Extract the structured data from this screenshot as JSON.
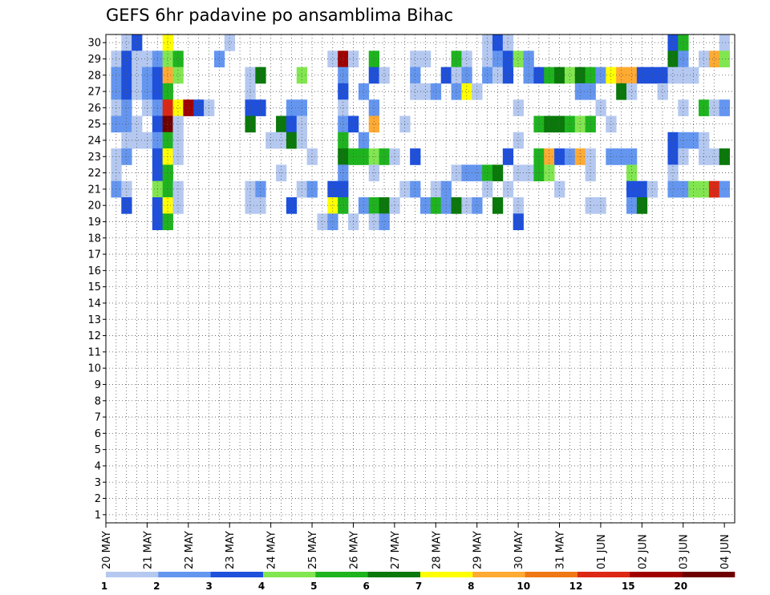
{
  "chart_data": {
    "type": "heatmap",
    "title": "GEFS 6hr padavine po ansamblima Bihac",
    "xlabel": "",
    "ylabel": "",
    "x_tick_labels": [
      "20 MAY",
      "21 MAY",
      "22 MAY",
      "23 MAY",
      "24 MAY",
      "25 MAY",
      "26 MAY",
      "27 MAY",
      "28 MAY",
      "29 MAY",
      "30 MAY",
      "31 MAY",
      "01 JUN",
      "02 JUN",
      "03 JUN",
      "04 JUN"
    ],
    "y_tick_labels": [
      "1",
      "2",
      "3",
      "4",
      "5",
      "6",
      "7",
      "8",
      "9",
      "10",
      "11",
      "12",
      "13",
      "14",
      "15",
      "16",
      "17",
      "18",
      "19",
      "20",
      "21",
      "22",
      "23",
      "24",
      "25",
      "26",
      "27",
      "28",
      "29",
      "30"
    ],
    "ylim": [
      1,
      30
    ],
    "time_steps": 61,
    "time_step_hours": 6,
    "start_date": "20 MAY",
    "grid": "dotted",
    "colorbar": {
      "labels": [
        "1",
        "2",
        "3",
        "4",
        "5",
        "6",
        "7",
        "8",
        "10",
        "12",
        "15",
        "20"
      ],
      "colors": [
        "#b4c8f0",
        "#6496f0",
        "#1e50dc",
        "#82e650",
        "#1eb41e",
        "#0a780a",
        "#ffff00",
        "#ffaa32",
        "#f07814",
        "#dc2814",
        "#a00000",
        "#6e0000"
      ]
    },
    "cells": [
      [
        30,
        2,
        0
      ],
      [
        30,
        3,
        2
      ],
      [
        30,
        6,
        6
      ],
      [
        30,
        12,
        0
      ],
      [
        30,
        37,
        0
      ],
      [
        30,
        38,
        2
      ],
      [
        30,
        39,
        0
      ],
      [
        30,
        55,
        2
      ],
      [
        30,
        56,
        4
      ],
      [
        30,
        60,
        0
      ],
      [
        29,
        1,
        0
      ],
      [
        29,
        2,
        2
      ],
      [
        29,
        3,
        0
      ],
      [
        29,
        4,
        0
      ],
      [
        29,
        5,
        1
      ],
      [
        29,
        6,
        3
      ],
      [
        29,
        7,
        4
      ],
      [
        29,
        11,
        1
      ],
      [
        29,
        22,
        0
      ],
      [
        29,
        23,
        10
      ],
      [
        29,
        24,
        0
      ],
      [
        29,
        26,
        4
      ],
      [
        29,
        30,
        0
      ],
      [
        29,
        31,
        0
      ],
      [
        29,
        34,
        4
      ],
      [
        29,
        35,
        0
      ],
      [
        29,
        37,
        0
      ],
      [
        29,
        38,
        1
      ],
      [
        29,
        39,
        2
      ],
      [
        29,
        40,
        3
      ],
      [
        29,
        41,
        1
      ],
      [
        29,
        55,
        5
      ],
      [
        29,
        56,
        1
      ],
      [
        29,
        58,
        0
      ],
      [
        29,
        59,
        7
      ],
      [
        29,
        60,
        3
      ],
      [
        28,
        1,
        1
      ],
      [
        28,
        2,
        2
      ],
      [
        28,
        3,
        0
      ],
      [
        28,
        4,
        1
      ],
      [
        28,
        5,
        2
      ],
      [
        28,
        6,
        7
      ],
      [
        28,
        7,
        3
      ],
      [
        28,
        14,
        0
      ],
      [
        28,
        15,
        5
      ],
      [
        28,
        19,
        3
      ],
      [
        28,
        23,
        1
      ],
      [
        28,
        26,
        2
      ],
      [
        28,
        27,
        0
      ],
      [
        28,
        30,
        1
      ],
      [
        28,
        33,
        2
      ],
      [
        28,
        34,
        0
      ],
      [
        28,
        35,
        1
      ],
      [
        28,
        37,
        1
      ],
      [
        28,
        38,
        0
      ],
      [
        28,
        39,
        2
      ],
      [
        28,
        41,
        1
      ],
      [
        28,
        42,
        2
      ],
      [
        28,
        43,
        4
      ],
      [
        28,
        44,
        5
      ],
      [
        28,
        45,
        3
      ],
      [
        28,
        46,
        5
      ],
      [
        28,
        47,
        4
      ],
      [
        28,
        48,
        1
      ],
      [
        28,
        49,
        6
      ],
      [
        28,
        50,
        7
      ],
      [
        28,
        51,
        7
      ],
      [
        28,
        52,
        2
      ],
      [
        28,
        53,
        2
      ],
      [
        28,
        54,
        2
      ],
      [
        28,
        55,
        0
      ],
      [
        28,
        56,
        0
      ],
      [
        28,
        57,
        0
      ],
      [
        27,
        1,
        1
      ],
      [
        27,
        2,
        2
      ],
      [
        27,
        3,
        0
      ],
      [
        27,
        4,
        1
      ],
      [
        27,
        5,
        2
      ],
      [
        27,
        6,
        4
      ],
      [
        27,
        14,
        0
      ],
      [
        27,
        23,
        2
      ],
      [
        27,
        25,
        1
      ],
      [
        27,
        30,
        0
      ],
      [
        27,
        31,
        0
      ],
      [
        27,
        32,
        1
      ],
      [
        27,
        34,
        1
      ],
      [
        27,
        35,
        6
      ],
      [
        27,
        36,
        0
      ],
      [
        27,
        46,
        1
      ],
      [
        27,
        47,
        1
      ],
      [
        27,
        50,
        5
      ],
      [
        27,
        51,
        0
      ],
      [
        27,
        54,
        0
      ],
      [
        26,
        1,
        0
      ],
      [
        26,
        2,
        1
      ],
      [
        26,
        4,
        0
      ],
      [
        26,
        5,
        1
      ],
      [
        26,
        6,
        9
      ],
      [
        26,
        7,
        6
      ],
      [
        26,
        8,
        10
      ],
      [
        26,
        9,
        2
      ],
      [
        26,
        10,
        0
      ],
      [
        26,
        14,
        2
      ],
      [
        26,
        15,
        2
      ],
      [
        26,
        18,
        1
      ],
      [
        26,
        19,
        1
      ],
      [
        26,
        23,
        0
      ],
      [
        26,
        26,
        1
      ],
      [
        26,
        40,
        0
      ],
      [
        26,
        48,
        0
      ],
      [
        26,
        56,
        0
      ],
      [
        26,
        58,
        4
      ],
      [
        26,
        59,
        0
      ],
      [
        26,
        60,
        1
      ],
      [
        25,
        1,
        1
      ],
      [
        25,
        2,
        1
      ],
      [
        25,
        3,
        0
      ],
      [
        25,
        5,
        2
      ],
      [
        25,
        6,
        11
      ],
      [
        25,
        7,
        0
      ],
      [
        25,
        14,
        5
      ],
      [
        25,
        17,
        5
      ],
      [
        25,
        18,
        2
      ],
      [
        25,
        19,
        0
      ],
      [
        25,
        23,
        1
      ],
      [
        25,
        24,
        2
      ],
      [
        25,
        26,
        7
      ],
      [
        25,
        29,
        0
      ],
      [
        25,
        42,
        4
      ],
      [
        25,
        43,
        5
      ],
      [
        25,
        44,
        5
      ],
      [
        25,
        45,
        4
      ],
      [
        25,
        46,
        3
      ],
      [
        25,
        47,
        4
      ],
      [
        25,
        49,
        0
      ],
      [
        24,
        2,
        0
      ],
      [
        24,
        3,
        0
      ],
      [
        24,
        4,
        0
      ],
      [
        24,
        5,
        1
      ],
      [
        24,
        6,
        4
      ],
      [
        24,
        7,
        0
      ],
      [
        24,
        16,
        0
      ],
      [
        24,
        17,
        0
      ],
      [
        24,
        18,
        5
      ],
      [
        24,
        19,
        0
      ],
      [
        24,
        23,
        4
      ],
      [
        24,
        25,
        1
      ],
      [
        24,
        40,
        0
      ],
      [
        24,
        55,
        2
      ],
      [
        24,
        56,
        1
      ],
      [
        24,
        57,
        1
      ],
      [
        24,
        58,
        0
      ],
      [
        23,
        1,
        0
      ],
      [
        23,
        2,
        1
      ],
      [
        23,
        5,
        2
      ],
      [
        23,
        6,
        6
      ],
      [
        23,
        7,
        0
      ],
      [
        23,
        20,
        0
      ],
      [
        23,
        23,
        5
      ],
      [
        23,
        24,
        4
      ],
      [
        23,
        25,
        4
      ],
      [
        23,
        26,
        3
      ],
      [
        23,
        27,
        4
      ],
      [
        23,
        28,
        0
      ],
      [
        23,
        30,
        2
      ],
      [
        23,
        39,
        2
      ],
      [
        23,
        42,
        4
      ],
      [
        23,
        43,
        7
      ],
      [
        23,
        44,
        2
      ],
      [
        23,
        45,
        1
      ],
      [
        23,
        46,
        7
      ],
      [
        23,
        47,
        0
      ],
      [
        23,
        49,
        1
      ],
      [
        23,
        50,
        1
      ],
      [
        23,
        51,
        1
      ],
      [
        23,
        55,
        2
      ],
      [
        23,
        56,
        0
      ],
      [
        23,
        58,
        0
      ],
      [
        23,
        59,
        0
      ],
      [
        23,
        60,
        5
      ],
      [
        22,
        1,
        0
      ],
      [
        22,
        5,
        2
      ],
      [
        22,
        6,
        4
      ],
      [
        22,
        17,
        0
      ],
      [
        22,
        23,
        1
      ],
      [
        22,
        26,
        0
      ],
      [
        22,
        34,
        0
      ],
      [
        22,
        35,
        1
      ],
      [
        22,
        36,
        1
      ],
      [
        22,
        37,
        4
      ],
      [
        22,
        38,
        5
      ],
      [
        22,
        40,
        0
      ],
      [
        22,
        41,
        0
      ],
      [
        22,
        42,
        4
      ],
      [
        22,
        43,
        3
      ],
      [
        22,
        47,
        0
      ],
      [
        22,
        51,
        3
      ],
      [
        22,
        55,
        0
      ],
      [
        21,
        1,
        1
      ],
      [
        21,
        2,
        0
      ],
      [
        21,
        5,
        3
      ],
      [
        21,
        6,
        4
      ],
      [
        21,
        7,
        0
      ],
      [
        21,
        14,
        0
      ],
      [
        21,
        15,
        1
      ],
      [
        21,
        19,
        0
      ],
      [
        21,
        20,
        1
      ],
      [
        21,
        22,
        2
      ],
      [
        21,
        23,
        2
      ],
      [
        21,
        29,
        0
      ],
      [
        21,
        30,
        1
      ],
      [
        21,
        32,
        0
      ],
      [
        21,
        33,
        1
      ],
      [
        21,
        37,
        0
      ],
      [
        21,
        39,
        0
      ],
      [
        21,
        44,
        0
      ],
      [
        21,
        51,
        2
      ],
      [
        21,
        52,
        2
      ],
      [
        21,
        53,
        0
      ],
      [
        21,
        55,
        1
      ],
      [
        21,
        56,
        1
      ],
      [
        21,
        57,
        3
      ],
      [
        21,
        58,
        3
      ],
      [
        21,
        59,
        9
      ],
      [
        21,
        60,
        1
      ],
      [
        20,
        2,
        2
      ],
      [
        20,
        5,
        2
      ],
      [
        20,
        6,
        6
      ],
      [
        20,
        7,
        0
      ],
      [
        20,
        14,
        0
      ],
      [
        20,
        15,
        0
      ],
      [
        20,
        18,
        2
      ],
      [
        20,
        22,
        6
      ],
      [
        20,
        23,
        4
      ],
      [
        20,
        25,
        1
      ],
      [
        20,
        26,
        4
      ],
      [
        20,
        27,
        5
      ],
      [
        20,
        28,
        0
      ],
      [
        20,
        31,
        1
      ],
      [
        20,
        32,
        4
      ],
      [
        20,
        33,
        1
      ],
      [
        20,
        34,
        5
      ],
      [
        20,
        35,
        0
      ],
      [
        20,
        36,
        1
      ],
      [
        20,
        38,
        5
      ],
      [
        20,
        40,
        0
      ],
      [
        20,
        47,
        0
      ],
      [
        20,
        48,
        0
      ],
      [
        20,
        51,
        1
      ],
      [
        20,
        52,
        5
      ],
      [
        19,
        5,
        2
      ],
      [
        19,
        6,
        4
      ],
      [
        19,
        21,
        0
      ],
      [
        19,
        22,
        1
      ],
      [
        19,
        24,
        0
      ],
      [
        19,
        26,
        0
      ],
      [
        19,
        27,
        1
      ],
      [
        19,
        40,
        2
      ]
    ]
  }
}
